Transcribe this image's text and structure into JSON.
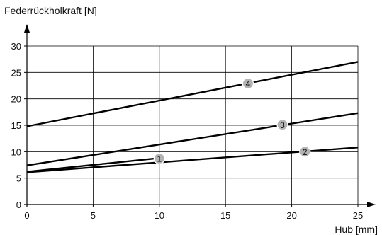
{
  "chart_data": {
    "type": "line",
    "ylabel": "Federrückholkraft [N]",
    "xlabel": "Hub [mm]",
    "xlim": [
      0,
      25
    ],
    "ylim": [
      0,
      30
    ],
    "x_ticks": [
      0,
      5,
      10,
      15,
      20,
      25
    ],
    "y_ticks": [
      0,
      5,
      10,
      15,
      20,
      25,
      30
    ],
    "grid": true,
    "legend": "none",
    "line_color": "#000000",
    "grid_color": "#000000",
    "marker_fill": "#b3b3b3",
    "series": [
      {
        "name": "1",
        "x": [
          0,
          10
        ],
        "y": [
          6.2,
          8.8
        ],
        "label_at": [
          10,
          8.7
        ]
      },
      {
        "name": "2",
        "x": [
          0,
          25
        ],
        "y": [
          6.1,
          10.8
        ],
        "label_at": [
          21,
          10.0
        ]
      },
      {
        "name": "3",
        "x": [
          0,
          25
        ],
        "y": [
          7.4,
          17.3
        ],
        "label_at": [
          19.3,
          15.1
        ]
      },
      {
        "name": "4",
        "x": [
          0,
          25
        ],
        "y": [
          14.8,
          27.0
        ],
        "label_at": [
          16.7,
          22.9
        ]
      }
    ]
  }
}
